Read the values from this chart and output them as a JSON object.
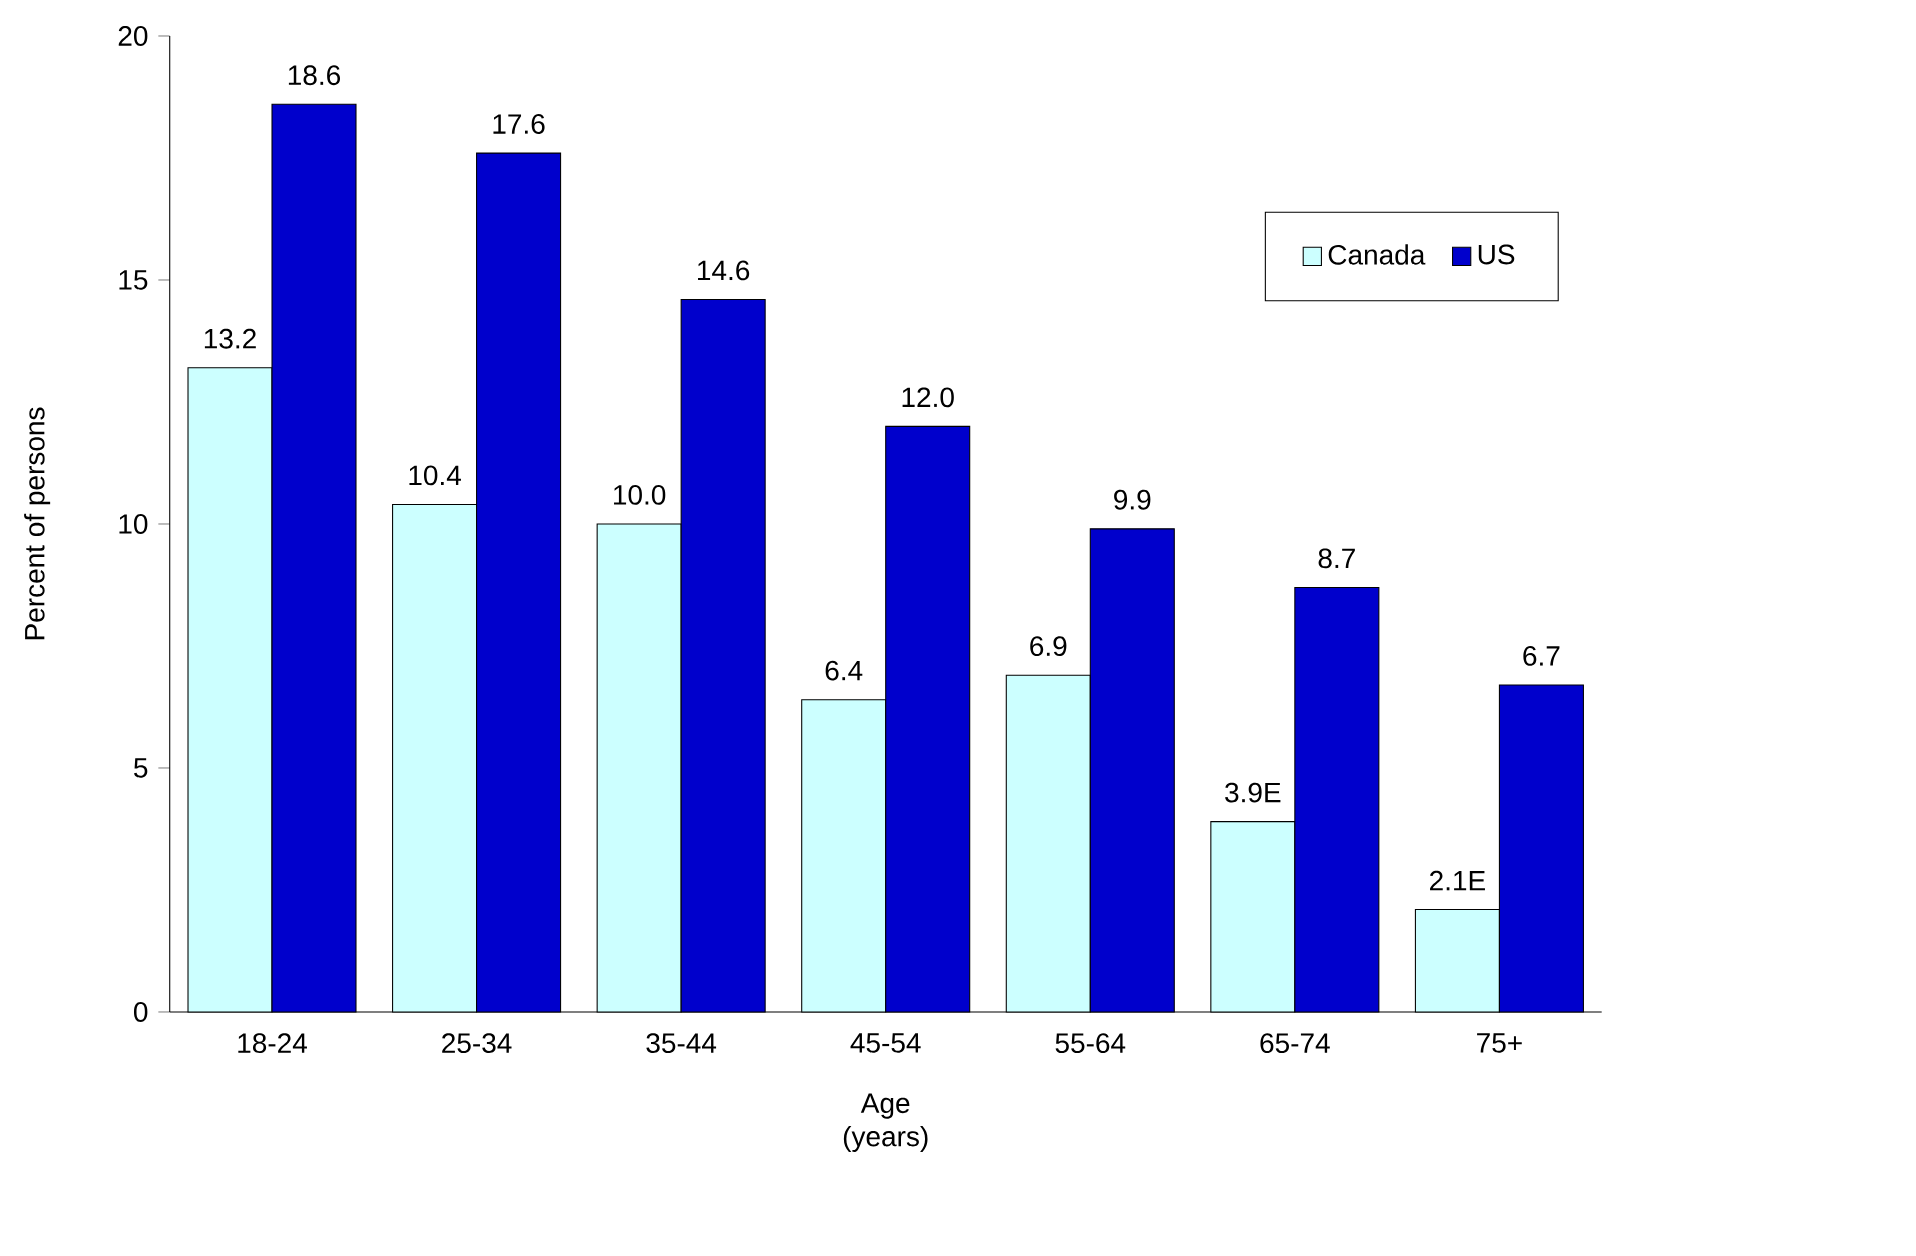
{
  "chart_data": {
    "type": "bar",
    "xlabel": "Age (years)",
    "ylabel": "Percent of persons",
    "categories": [
      "18-24",
      "25-34",
      "35-44",
      "45-54",
      "55-64",
      "65-74",
      "75+"
    ],
    "series": [
      {
        "name": "Canada",
        "color": "#ccffff",
        "values": [
          13.2,
          10.4,
          10.0,
          6.4,
          6.9,
          3.9,
          2.1
        ],
        "value_labels": [
          "13.2",
          "10.4",
          "10.0",
          "6.4",
          "6.9",
          "3.9E",
          "2.1E"
        ]
      },
      {
        "name": "US",
        "color": "#0000cc",
        "values": [
          18.6,
          17.6,
          14.6,
          12.0,
          9.9,
          8.7,
          6.7
        ],
        "value_labels": [
          "18.6",
          "17.6",
          "14.6",
          "12.0",
          "9.9",
          "8.7",
          "6.7"
        ]
      }
    ],
    "ylim": [
      0,
      20
    ],
    "yticks": [
      0,
      5,
      10,
      15,
      20
    ],
    "grid": false,
    "legend": "top right"
  }
}
